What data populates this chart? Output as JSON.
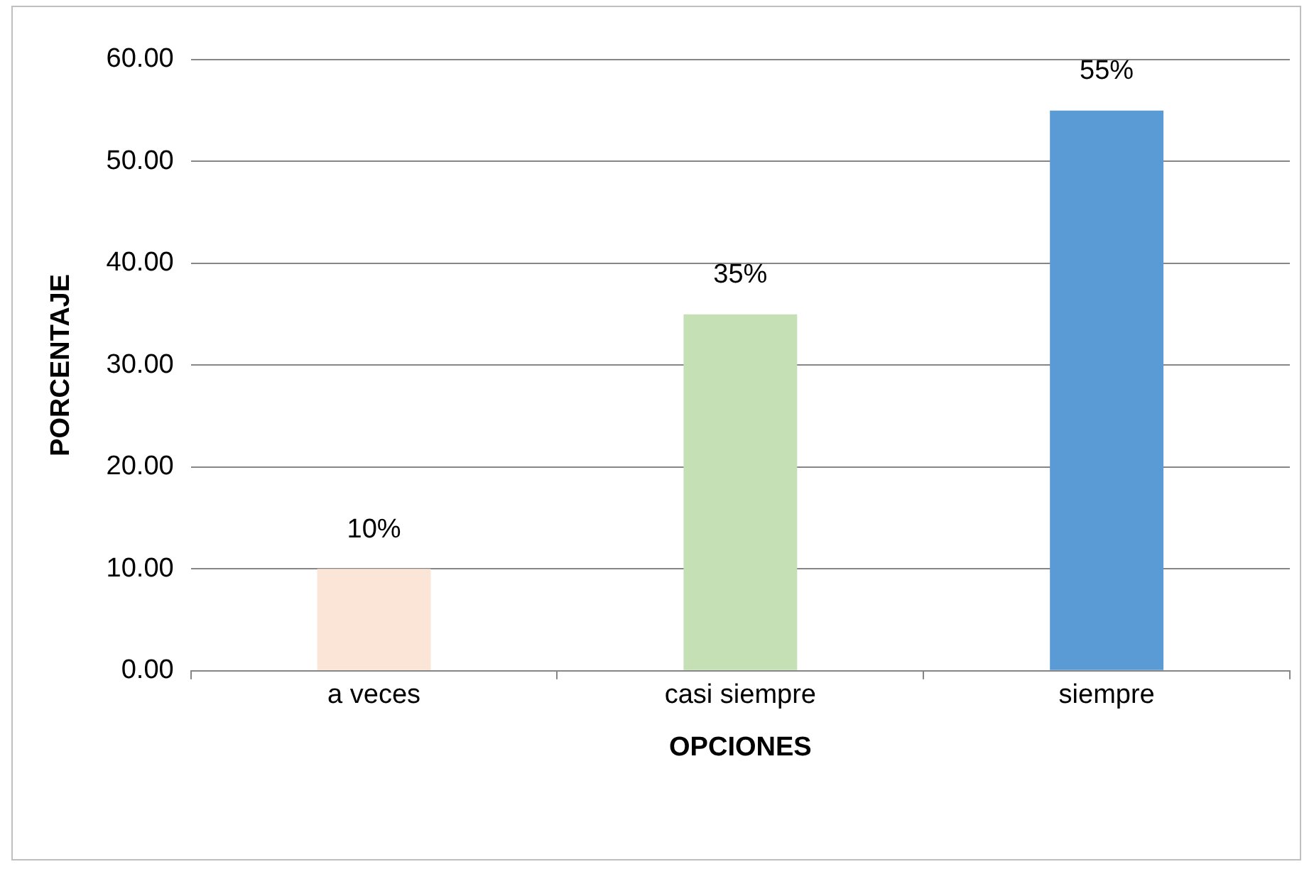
{
  "chart_data": {
    "type": "bar",
    "xlabel": "OPCIONES",
    "ylabel": "PORCENTAJE",
    "categories": [
      "a veces",
      "casi siempre",
      "siempre"
    ],
    "values": [
      10,
      35,
      55
    ],
    "colors": [
      "#fbe5d6",
      "#c5e0b4",
      "#5b9bd5"
    ],
    "value_labels": [
      "10%",
      "35%",
      "55%"
    ],
    "ylim": [
      0,
      60
    ],
    "yticks": [
      {
        "value": 0,
        "label": "0.00"
      },
      {
        "value": 10,
        "label": "10.00"
      },
      {
        "value": 20,
        "label": "20.00"
      },
      {
        "value": 30,
        "label": "30.00"
      },
      {
        "value": 40,
        "label": "40.00"
      },
      {
        "value": 50,
        "label": "50.00"
      },
      {
        "value": 60,
        "label": "60.00"
      }
    ],
    "grid": "y",
    "legend": false
  }
}
